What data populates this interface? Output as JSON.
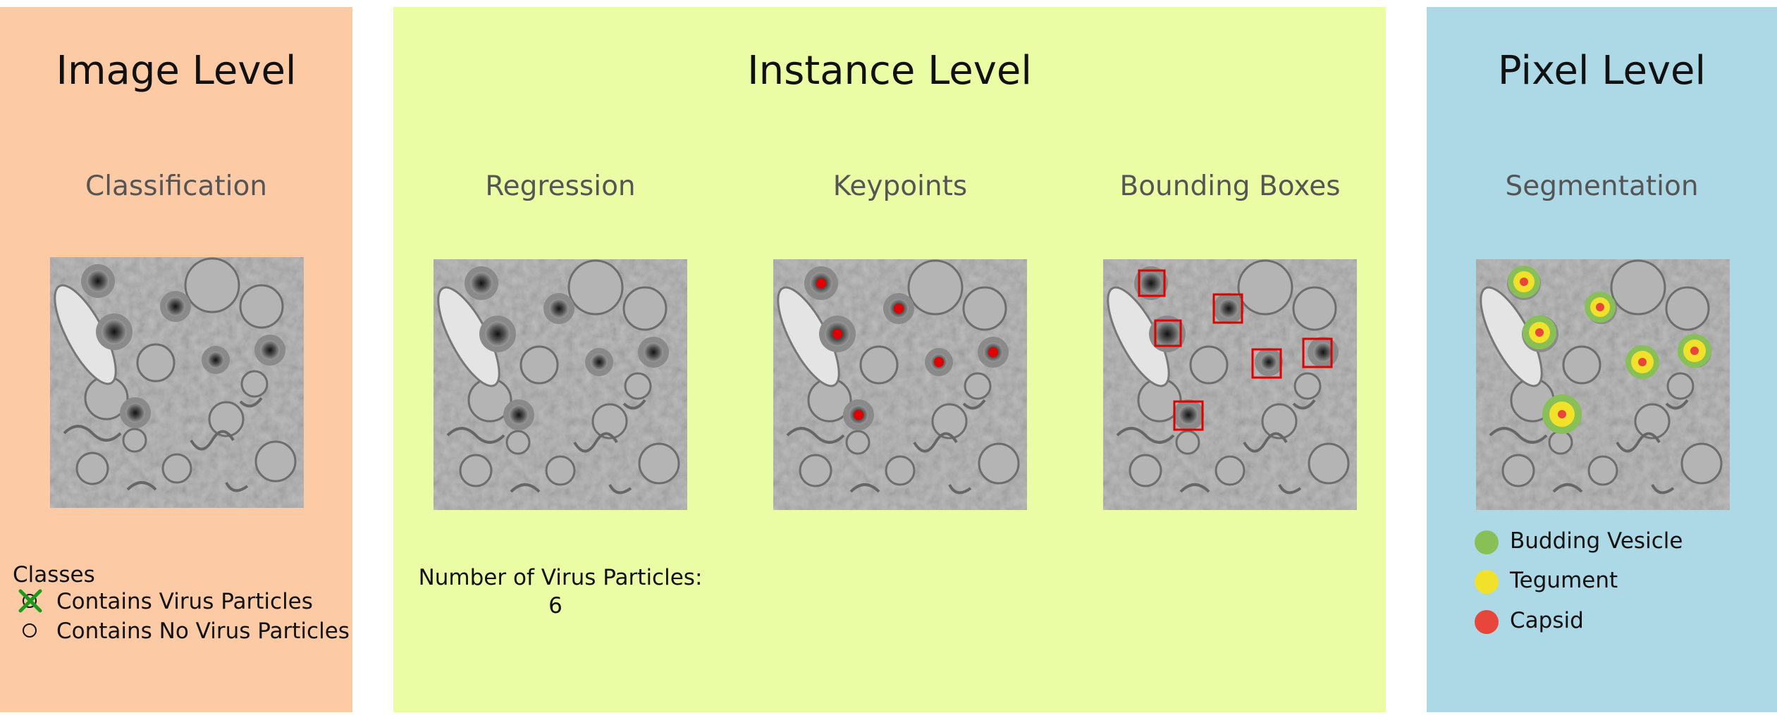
{
  "panels": {
    "image_level": {
      "title": "Image Level",
      "subtitle": "Classification",
      "classes_label": "Classes",
      "options": [
        {
          "label": "Contains Virus Particles",
          "checked": true
        },
        {
          "label": "Contains No Virus Particles",
          "checked": false
        }
      ]
    },
    "instance_level": {
      "title": "Instance Level",
      "regression": {
        "subtitle": "Regression",
        "count_label": "Number of Virus Particles:",
        "count_value": "6"
      },
      "keypoints": {
        "subtitle": "Keypoints"
      },
      "bounding_boxes": {
        "subtitle": "Bounding Boxes"
      }
    },
    "pixel_level": {
      "title": "Pixel Level",
      "subtitle": "Segmentation",
      "legend": [
        {
          "label": "Budding Vesicle",
          "color": "#88c057"
        },
        {
          "label": "Tegument",
          "color": "#f2e12a"
        },
        {
          "label": "Capsid",
          "color": "#e8463a"
        }
      ]
    }
  },
  "colors": {
    "keypoint": "#e00000",
    "box": "#e00000",
    "check": "#1a9c1a"
  }
}
